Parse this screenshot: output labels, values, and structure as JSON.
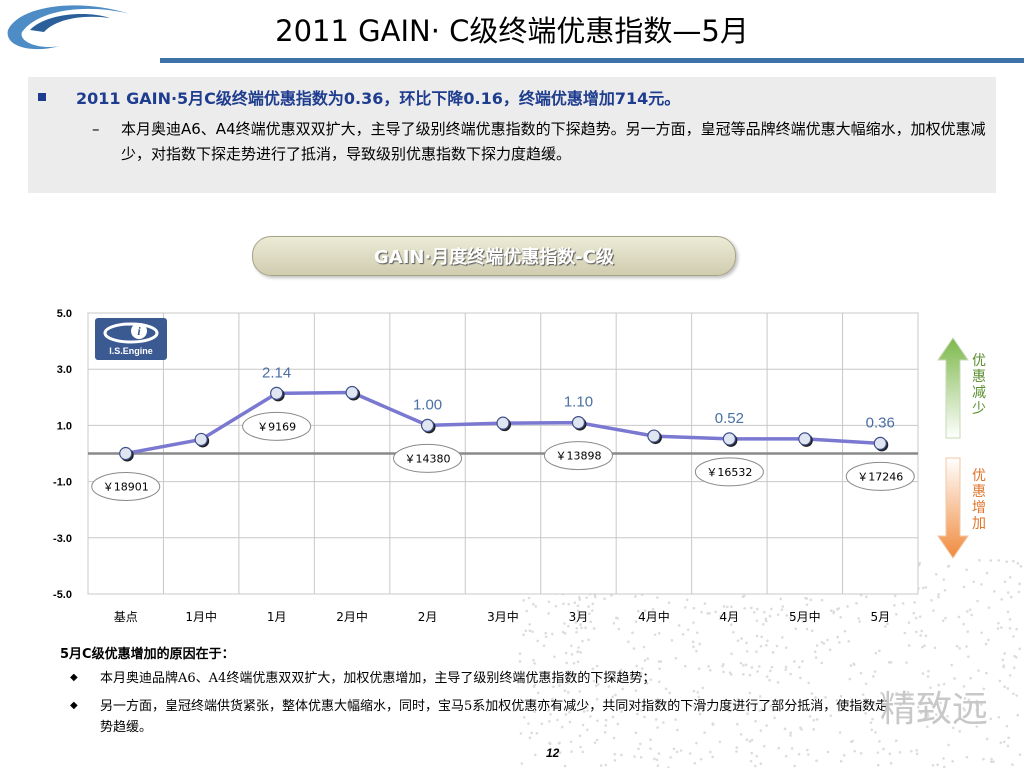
{
  "title": "2011 GAIN· C级终端优惠指数—5月",
  "summary": {
    "main": "2011 GAIN·5月C级终端优惠指数为0.36，环比下降0.16，终端优惠增加714元。",
    "sub_dash": "–",
    "sub": "本月奥迪A6、A4终端优惠双双扩大，主导了级别终端优惠指数的下探趋势。另一方面，皇冠等品牌终端优惠大幅缩水，加权优惠减少，对指数下探走势进行了抵消，导致级别优惠指数下探力度趋缓。"
  },
  "logo_text": "I.S.Engine",
  "arrows": {
    "up_label": "优惠减少",
    "down_label": "优惠增加",
    "up_color": "#7cb84a",
    "down_color": "#f08a3c"
  },
  "chart_data": {
    "type": "line",
    "title": "GAIN·月度终端优惠指数-C级",
    "categories": [
      "基点",
      "1月中",
      "1月",
      "2月中",
      "2月",
      "3月中",
      "3月",
      "4月中",
      "4月",
      "5月中",
      "5月"
    ],
    "values": [
      0.0,
      0.5,
      2.14,
      2.17,
      1.0,
      1.08,
      1.1,
      0.62,
      0.52,
      0.52,
      0.36
    ],
    "yticks": [
      "5.0",
      "3.0",
      "1.0",
      "-1.0",
      "-3.0",
      "-5.0"
    ],
    "ylim": [
      -5,
      5
    ],
    "grid": true,
    "line_color": "#7a78d0",
    "value_labels": [
      {
        "index": 2,
        "text": "2.14"
      },
      {
        "index": 4,
        "text": "1.00"
      },
      {
        "index": 6,
        "text": "1.10"
      },
      {
        "index": 8,
        "text": "0.52"
      },
      {
        "index": 10,
        "text": "0.36"
      }
    ],
    "price_labels": [
      {
        "index": 0,
        "text": "￥18901",
        "position": "below"
      },
      {
        "index": 2,
        "text": "￥9169",
        "position": "below"
      },
      {
        "index": 4,
        "text": "￥14380",
        "position": "below"
      },
      {
        "index": 6,
        "text": "￥13898",
        "position": "below"
      },
      {
        "index": 8,
        "text": "￥16532",
        "position": "below"
      },
      {
        "index": 10,
        "text": "￥17246",
        "position": "below"
      }
    ]
  },
  "reasons": {
    "title": "5月C级优惠增加的原因在于：",
    "bullet_glyph": "◆",
    "items": [
      "本月奥迪品牌A6、A4终端优惠双双扩大，加权优惠增加，主导了级别终端优惠指数的下探趋势；",
      "另一方面，皇冠终端供货紧张，整体优惠大幅缩水，同时，宝马5系加权优惠亦有减少，共同对指数的下滑力度进行了部分抵消，使指数走势趋缓。"
    ]
  },
  "page_number": "12",
  "watermark": "精致远"
}
